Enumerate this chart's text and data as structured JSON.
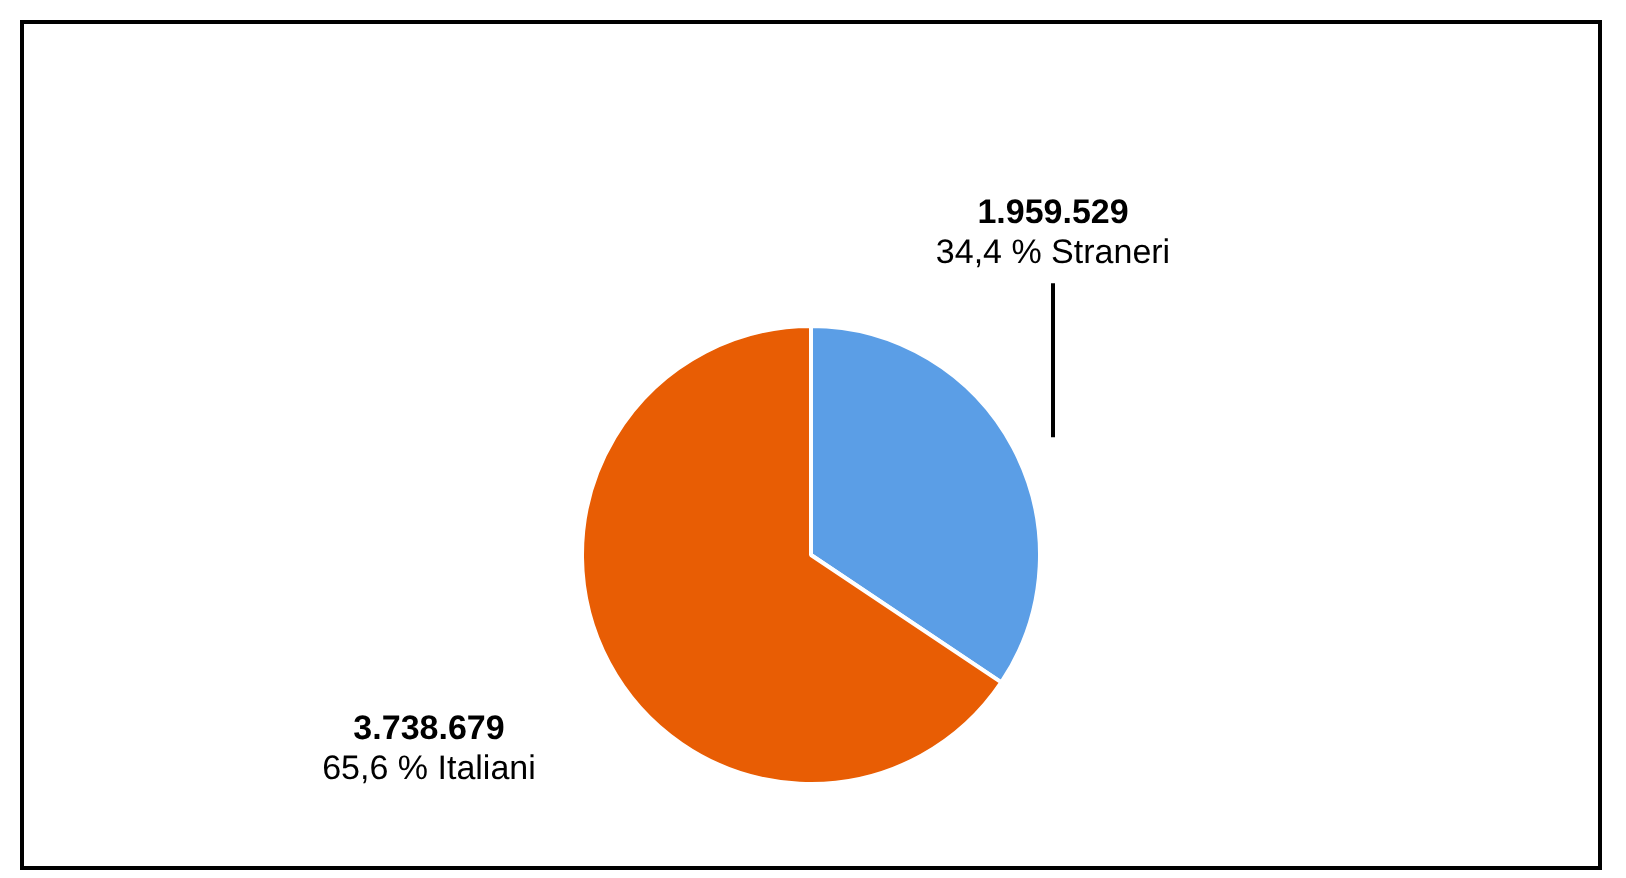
{
  "chart_data": {
    "type": "pie",
    "categories": [
      "Straneri",
      "Italiani"
    ],
    "values": [
      1959529,
      3738679
    ],
    "colors": [
      "#5b9ee6",
      "#e85d04"
    ],
    "value_labels": [
      "1.959.529",
      "3.738.679"
    ],
    "annotations": [
      "34,4 %",
      "65,6 %"
    ]
  }
}
